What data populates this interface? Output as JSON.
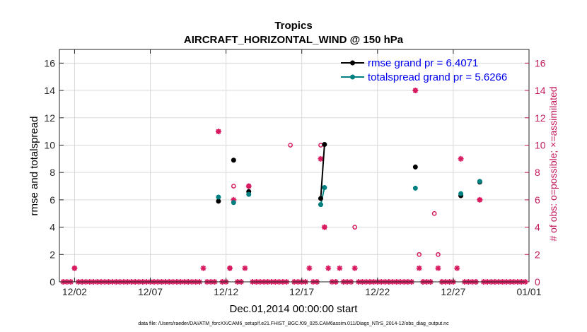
{
  "chart_data": {
    "type": "scatter",
    "title": "Tropics",
    "subtitle": "AIRCRAFT_HORIZONTAL_WIND @ 150 hPa",
    "xlabel": "Dec.01,2014 00:00:00 start",
    "ylabel": "rmse and totalspread",
    "ylabel_right": "# of obs: o=possible; ×=assimilated",
    "footnote": "data file: /Users/raeder/DAI/ATM_forcXX/CAM6_setup/f.e21.FHIST_BGC.f09_025.CAM6assim.011/Diags_NTrS_2014-12/obs_diag_output.nc",
    "xlim": [
      0,
      31
    ],
    "ylim": [
      0,
      17
    ],
    "ylim_right": [
      0,
      17
    ],
    "x_ticks": [
      1,
      6,
      11,
      16,
      21,
      26,
      31
    ],
    "x_tick_labels": [
      "12/02",
      "12/07",
      "12/12",
      "12/17",
      "12/22",
      "12/27",
      "01/01"
    ],
    "y_ticks": [
      0,
      2,
      4,
      6,
      8,
      10,
      12,
      14,
      16
    ],
    "y_tick_labels": [
      "0",
      "2",
      "4",
      "6",
      "8",
      "10",
      "12",
      "14",
      "16"
    ],
    "y_ticks_right": [
      0,
      2,
      4,
      6,
      8,
      10,
      12,
      14,
      16
    ],
    "y_tick_labels_right": [
      "0",
      "2",
      "4",
      "6",
      "8",
      "10",
      "12",
      "14",
      "16"
    ],
    "legend": [
      {
        "name": "rmse grand pr = 6.4071",
        "color": "#000000"
      },
      {
        "name": "totalspread grand pr = 5.6266",
        "color": "#008080"
      }
    ],
    "series": [
      {
        "name": "rmse",
        "color": "#000000",
        "points": [
          [
            10.5,
            5.9
          ],
          [
            11.5,
            8.9
          ],
          [
            12.5,
            6.6
          ],
          [
            17.25,
            6.1
          ],
          [
            17.5,
            10.05
          ],
          [
            23.5,
            8.4
          ],
          [
            26.5,
            6.3
          ],
          [
            27.75,
            7.3
          ]
        ],
        "segments": [
          [
            [
              17.25,
              6.1
            ],
            [
              17.5,
              10.05
            ]
          ]
        ]
      },
      {
        "name": "totalspread",
        "color": "#008080",
        "points": [
          [
            10.5,
            6.2
          ],
          [
            11.5,
            5.8
          ],
          [
            12.5,
            6.4
          ],
          [
            17.25,
            5.65
          ],
          [
            17.5,
            6.9
          ],
          [
            23.5,
            6.85
          ],
          [
            26.5,
            6.45
          ],
          [
            27.75,
            7.35
          ]
        ],
        "segments": [
          [
            [
              17.25,
              5.65
            ],
            [
              17.5,
              6.9
            ]
          ]
        ]
      }
    ],
    "obs_possible": {
      "name": "possible",
      "color": "#d81b60",
      "x": [
        1,
        10.5,
        11.25,
        11.5,
        12.5,
        15.25,
        17.25,
        17.5,
        19.5,
        23.5,
        23.75,
        24.75,
        25.0,
        27.75
      ],
      "y": [
        1,
        11,
        1,
        7,
        7,
        10,
        10,
        4,
        4,
        14,
        2,
        5,
        2,
        6
      ]
    },
    "obs_assimilated": {
      "name": "assimilated",
      "color": "#d81b60",
      "x": [
        1,
        9.5,
        10.5,
        11.25,
        11.5,
        12.25,
        12.5,
        16.5,
        17.25,
        17.5,
        17.75,
        18.5,
        19.5,
        23.5,
        23.75,
        25.0,
        26.25,
        26.5,
        27.75
      ],
      "y": [
        1,
        1,
        11,
        1,
        6,
        1,
        7,
        1,
        9,
        4,
        1,
        1,
        1,
        14,
        1,
        1,
        1,
        9,
        6
      ]
    },
    "zero_count_marker_step": 0.25
  }
}
